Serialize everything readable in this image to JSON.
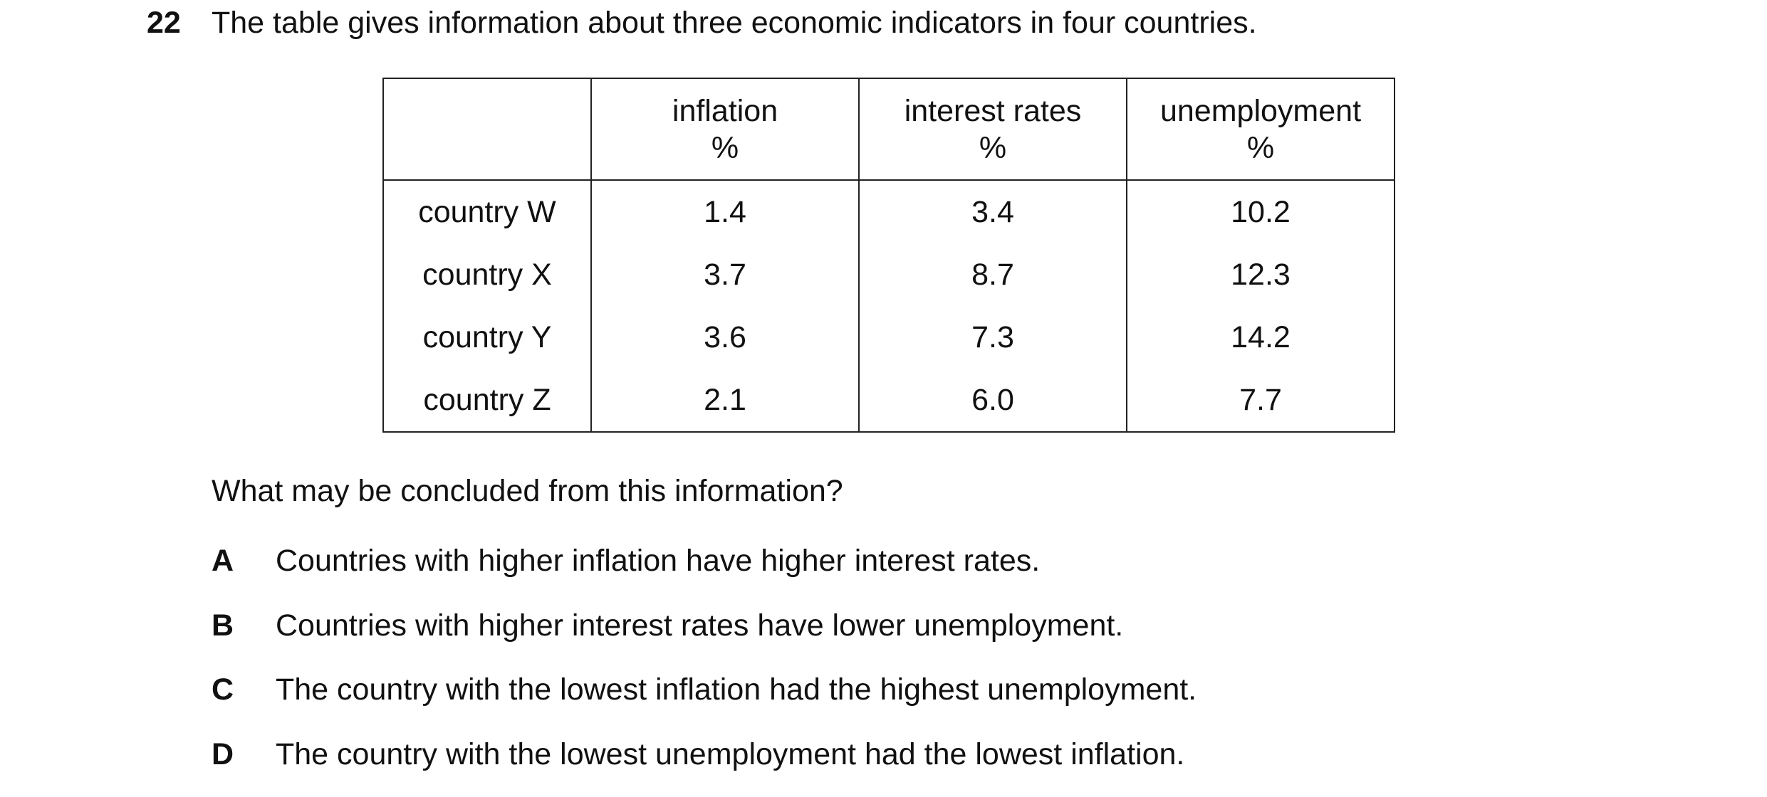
{
  "question": {
    "number": "22",
    "stem": "The table gives information about three economic indicators in four countries."
  },
  "table": {
    "headers": [
      {
        "line1": "",
        "line2": ""
      },
      {
        "line1": "inflation",
        "line2": "%"
      },
      {
        "line1": "interest rates",
        "line2": "%"
      },
      {
        "line1": "unemployment",
        "line2": "%"
      }
    ],
    "rows": [
      {
        "country": "country W",
        "inflation": "1.4",
        "interest": "3.4",
        "unemployment": "10.2"
      },
      {
        "country": "country X",
        "inflation": "3.7",
        "interest": "8.7",
        "unemployment": "12.3"
      },
      {
        "country": "country Y",
        "inflation": "3.6",
        "interest": "7.3",
        "unemployment": "14.2"
      },
      {
        "country": "country Z",
        "inflation": "2.1",
        "interest": "6.0",
        "unemployment": "7.7"
      }
    ]
  },
  "prompt": "What may be concluded from this information?",
  "options": [
    {
      "letter": "A",
      "text": "Countries with higher inflation have higher interest rates."
    },
    {
      "letter": "B",
      "text": "Countries with higher interest rates have lower unemployment."
    },
    {
      "letter": "C",
      "text": "The country with the lowest inflation had the highest unemployment."
    },
    {
      "letter": "D",
      "text": "The country with the lowest unemployment had the lowest inflation."
    }
  ]
}
